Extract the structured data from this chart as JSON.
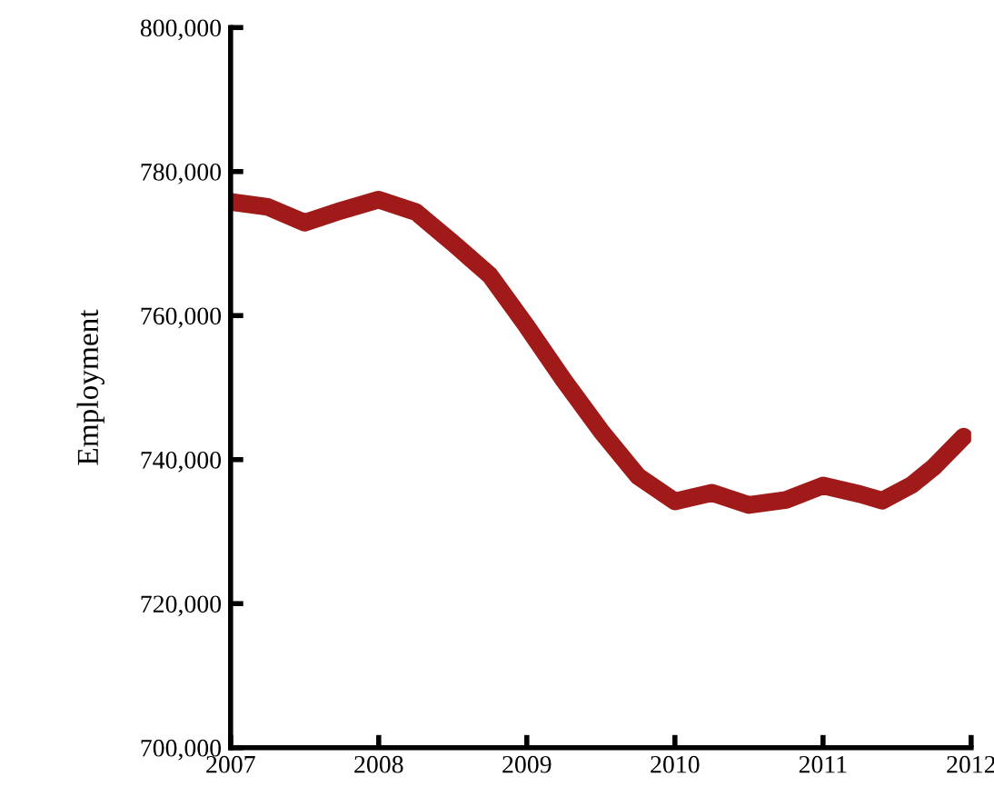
{
  "chart_data": {
    "type": "line",
    "ylabel": "Employment",
    "x": [
      2007,
      2007.25,
      2007.5,
      2007.75,
      2008,
      2008.25,
      2008.5,
      2008.75,
      2009,
      2009.25,
      2009.5,
      2009.75,
      2010,
      2010.25,
      2010.5,
      2010.75,
      2011,
      2011.25,
      2011.4,
      2011.6,
      2011.75,
      2011.95
    ],
    "series": [
      {
        "color": "#a11a1a",
        "values": [
          775800,
          775100,
          772900,
          774600,
          776100,
          774400,
          770100,
          765600,
          758500,
          751000,
          744000,
          737700,
          734200,
          735400,
          733700,
          734400,
          736400,
          735200,
          734300,
          736500,
          739000,
          743200
        ]
      }
    ],
    "xlim": [
      2007,
      2012
    ],
    "xticks": [
      2007,
      2008,
      2009,
      2010,
      2011,
      2012
    ],
    "ylim": [
      700000,
      800000
    ],
    "yticks": [
      {
        "value": 700000,
        "label": "700,000"
      },
      {
        "value": 720000,
        "label": "720,000"
      },
      {
        "value": 740000,
        "label": "740,000"
      },
      {
        "value": 760000,
        "label": "760,000"
      },
      {
        "value": 780000,
        "label": "780,000"
      },
      {
        "value": 800000,
        "label": "800,000"
      }
    ],
    "grid": false,
    "legend": false,
    "marker": "none",
    "line_style": "solid"
  }
}
